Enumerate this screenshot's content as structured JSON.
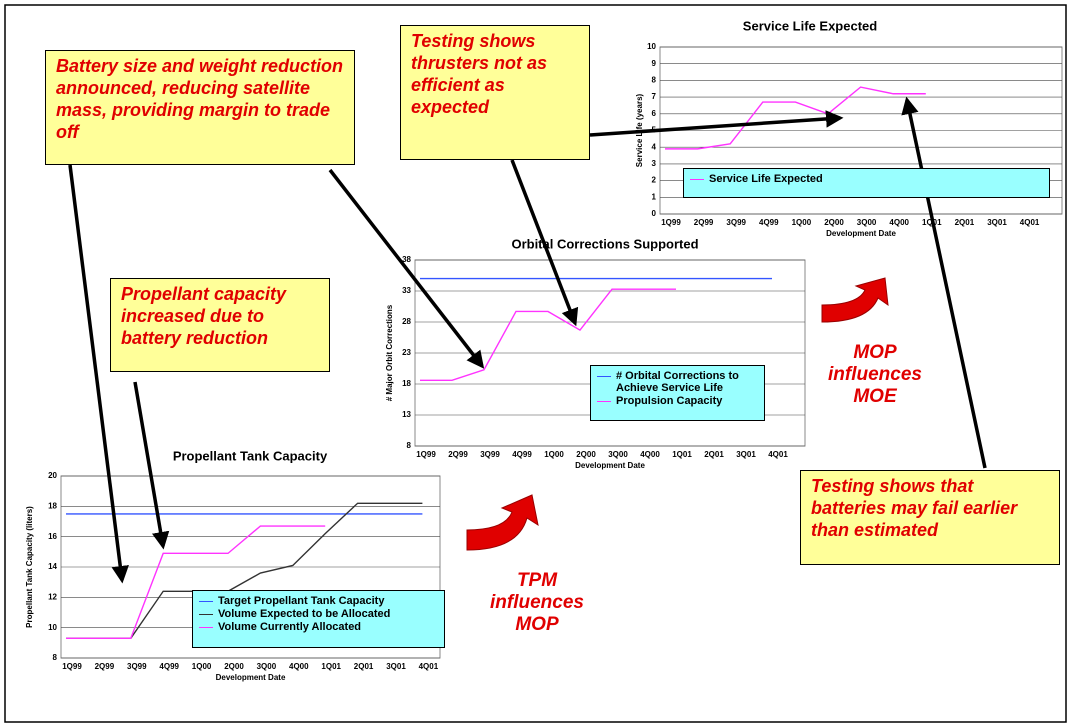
{
  "annotations": [
    "Battery size and weight reduction announced, reducing satellite mass, providing margin to trade off",
    "Testing shows thrusters not as efficient as expected",
    "Propellant capacity increased due to battery reduction",
    "Testing shows that batteries may fail earlier than estimated"
  ],
  "callouts": [
    "MOP influences MOE",
    "TPM influences MOP"
  ],
  "chart_data": [
    {
      "type": "line",
      "title": "Service Life Expected",
      "x_label": "Development Date",
      "y_label": "Service Life (years)",
      "categories": [
        "1Q99",
        "2Q99",
        "3Q99",
        "4Q99",
        "1Q00",
        "2Q00",
        "3Q00",
        "4Q00",
        "1Q01",
        "2Q01",
        "3Q01",
        "4Q01"
      ],
      "series": [
        {
          "name": "Service Life Expected",
          "color": "#ff33ff",
          "values": [
            3.9,
            3.9,
            4.2,
            6.7,
            6.7,
            6.0,
            7.6,
            7.2,
            7.2,
            null,
            null,
            null
          ]
        }
      ],
      "ylim": [
        0,
        10
      ],
      "yticks": [
        0,
        1,
        2,
        3,
        4,
        5,
        6,
        7,
        8,
        9,
        10
      ],
      "grid": true
    },
    {
      "type": "line",
      "title": "Orbital Corrections Supported",
      "x_label": "Development Date",
      "y_label": "# Major Orbit Corrections",
      "categories": [
        "1Q99",
        "2Q99",
        "3Q99",
        "4Q99",
        "1Q00",
        "2Q00",
        "3Q00",
        "4Q00",
        "1Q01",
        "2Q01",
        "3Q01",
        "4Q01"
      ],
      "series": [
        {
          "name": "# Orbital Corrections to Achieve Service Life",
          "color": "#3355ff",
          "values": [
            35,
            35,
            35,
            35,
            35,
            35,
            35,
            35,
            35,
            35,
            35,
            35
          ]
        },
        {
          "name": "Propulsion Capacity",
          "color": "#ff33ff",
          "values": [
            18.6,
            18.6,
            20.3,
            29.7,
            29.7,
            26.7,
            33.3,
            33.3,
            33.3,
            null,
            null,
            null
          ]
        }
      ],
      "ylim": [
        8,
        38
      ],
      "yticks": [
        8,
        13,
        18,
        23,
        28,
        33,
        38
      ],
      "grid": true
    },
    {
      "type": "line",
      "title": "Propellant Tank Capacity",
      "x_label": "Development Date",
      "y_label": "Propellant Tank Capacity (liters)",
      "categories": [
        "1Q99",
        "2Q99",
        "3Q99",
        "4Q99",
        "1Q00",
        "2Q00",
        "3Q00",
        "4Q00",
        "1Q01",
        "2Q01",
        "3Q01",
        "4Q01"
      ],
      "series": [
        {
          "name": "Target Propellant Tank Capacity",
          "color": "#3355ff",
          "values": [
            17.5,
            17.5,
            17.5,
            17.5,
            17.5,
            17.5,
            17.5,
            17.5,
            17.5,
            17.5,
            17.5,
            17.5
          ]
        },
        {
          "name": "Volume Expected to be Allocated",
          "color": "#333333",
          "values": [
            9.3,
            9.3,
            9.3,
            12.4,
            12.4,
            12.4,
            13.6,
            14.1,
            16.2,
            18.2,
            18.2,
            18.2
          ]
        },
        {
          "name": "Volume Currently Allocated",
          "color": "#ff33ff",
          "values": [
            9.3,
            9.3,
            9.3,
            14.9,
            14.9,
            14.9,
            16.7,
            16.7,
            16.7,
            null,
            null,
            null
          ]
        }
      ],
      "ylim": [
        8,
        20
      ],
      "yticks": [
        8,
        10,
        12,
        14,
        16,
        18,
        20
      ],
      "grid": true
    }
  ]
}
